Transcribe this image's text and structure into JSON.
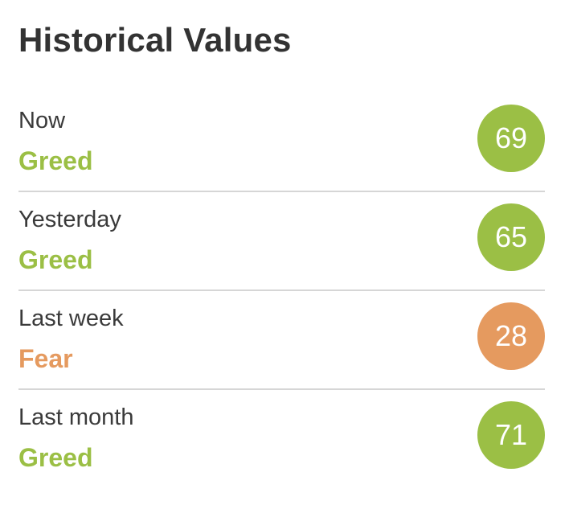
{
  "header": {
    "title": "Historical Values"
  },
  "colors": {
    "greed": "#9bbf45",
    "fear": "#e59a5f"
  },
  "rows": [
    {
      "label": "Now",
      "status": "Greed",
      "value": "69",
      "color": "#9bbf45"
    },
    {
      "label": "Yesterday",
      "status": "Greed",
      "value": "65",
      "color": "#9bbf45"
    },
    {
      "label": "Last week",
      "status": "Fear",
      "value": "28",
      "color": "#e59a5f"
    },
    {
      "label": "Last month",
      "status": "Greed",
      "value": "71",
      "color": "#9bbf45"
    }
  ]
}
